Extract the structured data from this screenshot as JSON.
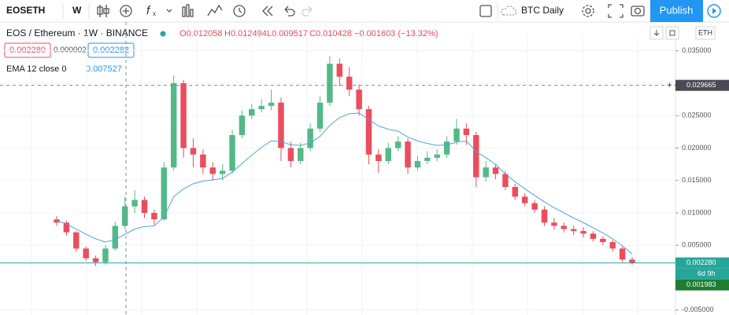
{
  "toolbar": {
    "symbol": "EOSETH",
    "interval": "W",
    "compare": "BTC Daily",
    "publish": "Publish"
  },
  "legend": {
    "title": "EOS / Ethereum · 1W · BINANCE",
    "open": "O0.012058",
    "high": "H0.012494",
    "low": "L0.009517",
    "close": "C0.010428",
    "change": "−0.001603 (−13.32%)",
    "bid": "0.002280",
    "spread": "0.000002",
    "ask": "0.002282",
    "ema_title": "EMA 12 close 0",
    "ema_value": "0.007527"
  },
  "axis": {
    "currency": "ETH",
    "countdown": "6d 9h",
    "low_label": "0.001983"
  },
  "chart_data": {
    "type": "candlestick",
    "up_color": "#53b987",
    "down_color": "#eb4d5c",
    "open": [
      0.009,
      0.0085,
      0.007,
      0.0045,
      0.003,
      0.0024,
      0.0045,
      0.008,
      0.011,
      0.012,
      0.01,
      0.009,
      0.017,
      0.03,
      0.02,
      0.019,
      0.017,
      0.016,
      0.0165,
      0.022,
      0.025,
      0.026,
      0.0265,
      0.027,
      0.02,
      0.018,
      0.02,
      0.023,
      0.027,
      0.033,
      0.031,
      0.029,
      0.026,
      0.019,
      0.018,
      0.02,
      0.021,
      0.017,
      0.018,
      0.0185,
      0.019,
      0.021,
      0.023,
      0.022,
      0.0155,
      0.017,
      0.016,
      0.014,
      0.0125,
      0.0115,
      0.0105,
      0.0085,
      0.008,
      0.0075,
      0.0072,
      0.0068,
      0.006,
      0.0055,
      0.0045,
      0.0028
    ],
    "high": [
      0.0095,
      0.0088,
      0.0072,
      0.0048,
      0.0034,
      0.005,
      0.0086,
      0.0125,
      0.0135,
      0.0125,
      0.0105,
      0.0178,
      0.0312,
      0.0305,
      0.0215,
      0.0198,
      0.0178,
      0.0175,
      0.0228,
      0.0258,
      0.0268,
      0.0275,
      0.029,
      0.0278,
      0.021,
      0.0208,
      0.0238,
      0.028,
      0.0342,
      0.0338,
      0.0325,
      0.0298,
      0.0265,
      0.0198,
      0.0208,
      0.0218,
      0.0215,
      0.0188,
      0.0195,
      0.0198,
      0.0218,
      0.0245,
      0.0238,
      0.0225,
      0.018,
      0.0175,
      0.0165,
      0.0145,
      0.013,
      0.012,
      0.011,
      0.0092,
      0.0085,
      0.008,
      0.0078,
      0.0072,
      0.0064,
      0.0058,
      0.0048,
      0.0032
    ],
    "low": [
      0.008,
      0.0065,
      0.004,
      0.0026,
      0.0018,
      0.002,
      0.0042,
      0.0075,
      0.01,
      0.0092,
      0.0082,
      0.0088,
      0.0165,
      0.0185,
      0.017,
      0.016,
      0.015,
      0.015,
      0.016,
      0.0215,
      0.0245,
      0.0255,
      0.0258,
      0.018,
      0.017,
      0.0175,
      0.0195,
      0.0225,
      0.0265,
      0.0295,
      0.028,
      0.025,
      0.0175,
      0.0162,
      0.0175,
      0.0195,
      0.016,
      0.0165,
      0.0175,
      0.018,
      0.0185,
      0.0205,
      0.0205,
      0.014,
      0.0148,
      0.0152,
      0.0135,
      0.012,
      0.011,
      0.01,
      0.008,
      0.0074,
      0.007,
      0.0066,
      0.0062,
      0.0056,
      0.005,
      0.004,
      0.0024,
      0.002
    ],
    "close": [
      0.0085,
      0.007,
      0.0045,
      0.003,
      0.0024,
      0.0045,
      0.008,
      0.011,
      0.012,
      0.01,
      0.009,
      0.017,
      0.03,
      0.02,
      0.019,
      0.017,
      0.016,
      0.0165,
      0.022,
      0.025,
      0.026,
      0.0265,
      0.027,
      0.02,
      0.018,
      0.02,
      0.023,
      0.027,
      0.033,
      0.031,
      0.029,
      0.026,
      0.019,
      0.018,
      0.02,
      0.021,
      0.017,
      0.018,
      0.0185,
      0.019,
      0.021,
      0.023,
      0.022,
      0.0155,
      0.017,
      0.016,
      0.014,
      0.0125,
      0.0115,
      0.0105,
      0.0085,
      0.008,
      0.0075,
      0.0072,
      0.0068,
      0.006,
      0.0055,
      0.0045,
      0.0028,
      0.00228
    ],
    "ema": {
      "color": "#4fa3e0",
      "values": [
        0.0088,
        0.0083,
        0.0075,
        0.0067,
        0.006,
        0.0055,
        0.0059,
        0.0067,
        0.0075,
        0.0079,
        0.008,
        0.0094,
        0.0125,
        0.0137,
        0.0145,
        0.0149,
        0.0151,
        0.0153,
        0.0163,
        0.0176,
        0.0189,
        0.0201,
        0.0211,
        0.021,
        0.0205,
        0.0204,
        0.0208,
        0.0218,
        0.0235,
        0.0247,
        0.0253,
        0.0254,
        0.0244,
        0.0234,
        0.0229,
        0.0226,
        0.0217,
        0.0211,
        0.0207,
        0.0204,
        0.0205,
        0.0209,
        0.0211,
        0.0195,
        0.0185,
        0.0175,
        0.016,
        0.0148,
        0.0137,
        0.0127,
        0.0117,
        0.0108,
        0.01,
        0.0092,
        0.0085,
        0.0077,
        0.0069,
        0.006,
        0.0049,
        0.0037
      ]
    },
    "last_price": {
      "value": 0.00228,
      "label": "0.002280"
    },
    "crosshair_price": 0.029665,
    "ylim": [
      -0.00575,
      0.0375
    ],
    "yticks": [
      {
        "value": 0.035,
        "label": "0.035000"
      },
      {
        "value": 0.03,
        "label": "0.030000"
      },
      {
        "value": 0.025,
        "label": "0.025000"
      },
      {
        "value": 0.02,
        "label": "0.020000"
      },
      {
        "value": 0.015,
        "label": "0.015000"
      },
      {
        "value": 0.01,
        "label": "0.010000"
      },
      {
        "value": 0.005,
        "label": "0.005000"
      },
      {
        "value": -0.005,
        "label": "-0.005000"
      }
    ],
    "grid": true
  }
}
